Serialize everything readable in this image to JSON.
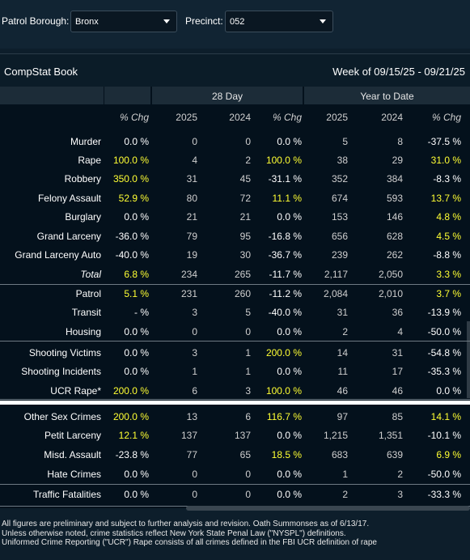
{
  "filters": {
    "borough_label": "Patrol Borough:",
    "borough_value": "Bronx",
    "precinct_label": "Precinct:",
    "precinct_value": "052"
  },
  "book": {
    "title": "CompStat Book",
    "week": "Week of 09/15/25 - 09/21/25",
    "group_28day": "28 Day",
    "group_ytd": "Year to Date"
  },
  "columns": [
    "% Chg",
    "2025",
    "2024",
    "% Chg",
    "2025",
    "2024",
    "% Chg"
  ],
  "rows": [
    {
      "label": "Murder",
      "vals": [
        "0.0 %",
        "0",
        "0",
        "0.0 %",
        "5",
        "8",
        "-37.5 %"
      ],
      "hl": [
        0,
        0,
        0,
        0,
        0,
        0,
        0
      ]
    },
    {
      "label": "Rape",
      "vals": [
        "100.0 %",
        "4",
        "2",
        "100.0 %",
        "38",
        "29",
        "31.0 %"
      ],
      "hl": [
        1,
        0,
        0,
        1,
        0,
        0,
        1
      ]
    },
    {
      "label": "Robbery",
      "vals": [
        "350.0 %",
        "31",
        "45",
        "-31.1 %",
        "352",
        "384",
        "-8.3 %"
      ],
      "hl": [
        1,
        0,
        0,
        0,
        0,
        0,
        0
      ]
    },
    {
      "label": "Felony Assault",
      "vals": [
        "52.9 %",
        "80",
        "72",
        "11.1 %",
        "674",
        "593",
        "13.7 %"
      ],
      "hl": [
        1,
        0,
        0,
        1,
        0,
        0,
        1
      ]
    },
    {
      "label": "Burglary",
      "vals": [
        "0.0 %",
        "21",
        "21",
        "0.0 %",
        "153",
        "146",
        "4.8 %"
      ],
      "hl": [
        0,
        0,
        0,
        0,
        0,
        0,
        1
      ]
    },
    {
      "label": "Grand Larceny",
      "vals": [
        "-36.0 %",
        "79",
        "95",
        "-16.8 %",
        "656",
        "628",
        "4.5 %"
      ],
      "hl": [
        0,
        0,
        0,
        0,
        0,
        0,
        1
      ]
    },
    {
      "label": "Grand Larceny Auto",
      "vals": [
        "-40.0 %",
        "19",
        "30",
        "-36.7 %",
        "239",
        "262",
        "-8.8 %"
      ],
      "hl": [
        0,
        0,
        0,
        0,
        0,
        0,
        0
      ]
    },
    {
      "label": "Total",
      "vals": [
        "6.8 %",
        "234",
        "265",
        "-11.7 %",
        "2,117",
        "2,050",
        "3.3 %"
      ],
      "hl": [
        1,
        0,
        0,
        0,
        0,
        0,
        1
      ],
      "total": true
    },
    {
      "label": "Patrol",
      "vals": [
        "5.1 %",
        "231",
        "260",
        "-11.2 %",
        "2,084",
        "2,010",
        "3.7 %"
      ],
      "hl": [
        1,
        0,
        0,
        0,
        0,
        0,
        1
      ]
    },
    {
      "label": "Transit",
      "vals": [
        "- %",
        "3",
        "5",
        "-40.0 %",
        "31",
        "36",
        "-13.9 %"
      ],
      "hl": [
        0,
        0,
        0,
        0,
        0,
        0,
        0
      ]
    },
    {
      "label": "Housing",
      "vals": [
        "0.0 %",
        "0",
        "0",
        "0.0 %",
        "2",
        "4",
        "-50.0 %"
      ],
      "hl": [
        0,
        0,
        0,
        0,
        0,
        0,
        0
      ]
    },
    {
      "label": "Shooting Victims",
      "vals": [
        "0.0 %",
        "3",
        "1",
        "200.0 %",
        "14",
        "31",
        "-54.8 %"
      ],
      "hl": [
        0,
        0,
        0,
        1,
        0,
        0,
        0
      ]
    },
    {
      "label": "Shooting Incidents",
      "vals": [
        "0.0 %",
        "1",
        "1",
        "0.0 %",
        "11",
        "17",
        "-35.3 %"
      ],
      "hl": [
        0,
        0,
        0,
        0,
        0,
        0,
        0
      ]
    },
    {
      "label": "UCR Rape*",
      "vals": [
        "200.0 %",
        "6",
        "3",
        "100.0 %",
        "46",
        "46",
        "0.0 %"
      ],
      "hl": [
        1,
        0,
        0,
        1,
        0,
        0,
        0
      ]
    },
    {
      "label": "Other Sex Crimes",
      "vals": [
        "200.0 %",
        "13",
        "6",
        "116.7 %",
        "97",
        "85",
        "14.1 %"
      ],
      "hl": [
        1,
        0,
        0,
        1,
        0,
        0,
        1
      ]
    },
    {
      "label": "Petit Larceny",
      "vals": [
        "12.1 %",
        "137",
        "137",
        "0.0 %",
        "1,215",
        "1,351",
        "-10.1 %"
      ],
      "hl": [
        1,
        0,
        0,
        0,
        0,
        0,
        0
      ]
    },
    {
      "label": "Misd. Assault",
      "vals": [
        "-23.8 %",
        "77",
        "65",
        "18.5 %",
        "683",
        "639",
        "6.9 %"
      ],
      "hl": [
        0,
        0,
        0,
        1,
        0,
        0,
        1
      ]
    },
    {
      "label": "Hate Crimes",
      "vals": [
        "0.0 %",
        "0",
        "0",
        "0.0 %",
        "1",
        "2",
        "-50.0 %"
      ],
      "hl": [
        0,
        0,
        0,
        0,
        0,
        0,
        0
      ]
    },
    {
      "label": "Traffic Fatalities",
      "vals": [
        "0.0 %",
        "0",
        "0",
        "0.0 %",
        "2",
        "3",
        "-33.3 %"
      ],
      "hl": [
        0,
        0,
        0,
        0,
        0,
        0,
        0
      ]
    }
  ],
  "footnotes": [
    "All figures are preliminary and subject to further analysis and revision. Oath Summonses as of 6/13/17.",
    "Unless otherwise noted, crime statistics reflect New York State Penal Law (\"NYSPL\") definitions.",
    "Uniformed Crime Reporting (\"UCR\") Rape consists of all crimes defined in the FBI UCR definition of rape"
  ],
  "colors": {
    "highlight": "#ffff33",
    "background": "#04111c"
  }
}
